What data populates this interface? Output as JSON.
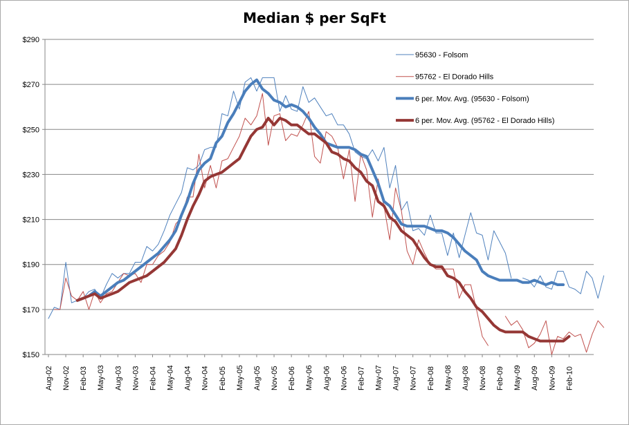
{
  "chart_data": {
    "type": "line",
    "title": "Median $ per SqFt",
    "xlabel": "",
    "ylabel": "",
    "ylim": [
      150,
      290
    ],
    "y_ticks": [
      "$150",
      "$170",
      "$190",
      "$210",
      "$230",
      "$250",
      "$270",
      "$290"
    ],
    "y_tick_values": [
      150,
      170,
      190,
      210,
      230,
      250,
      270,
      290
    ],
    "x_start": "Aug-02",
    "x_tick_labels": [
      "Aug-02",
      "Nov-02",
      "Feb-03",
      "May-03",
      "Aug-03",
      "Nov-03",
      "Feb-04",
      "May-04",
      "Aug-04",
      "Nov-04",
      "Feb-05",
      "May-05",
      "Aug-05",
      "Nov-05",
      "Feb-06",
      "May-06",
      "Aug-06",
      "Nov-06",
      "Feb-07",
      "May-07",
      "Aug-07",
      "Nov-07",
      "Feb-08",
      "May-08",
      "Aug-08",
      "Nov-08",
      "Feb-09",
      "May-09",
      "Aug-09",
      "Nov-09",
      "Feb-10"
    ],
    "grid": true,
    "legend_position": "top-right",
    "series": [
      {
        "name": "95630 - Folsom",
        "color": "#4f81bd",
        "width": 1,
        "values": [
          166,
          171,
          170,
          191,
          173,
          174,
          175,
          178,
          179,
          175,
          181,
          186,
          184,
          186,
          186,
          191,
          191,
          198,
          196,
          199,
          205,
          212,
          217,
          222,
          233,
          232,
          234,
          241,
          242,
          242,
          257,
          256,
          267,
          259,
          271,
          273,
          267,
          273,
          273,
          273,
          258,
          265,
          259,
          258,
          269,
          262,
          264,
          260,
          256,
          257,
          252,
          252,
          248,
          240,
          238,
          237,
          241,
          236,
          242,
          224,
          234,
          214,
          218,
          205,
          206,
          203,
          212,
          204,
          204,
          194,
          204,
          193,
          203,
          213,
          204,
          203,
          192,
          205,
          200,
          195,
          184,
          null,
          184,
          183,
          180,
          185,
          180,
          179,
          187,
          187,
          180,
          179,
          177,
          187,
          184,
          175,
          185
        ]
      },
      {
        "name": "95762 - El Dorado Hills",
        "color": "#c0504d",
        "width": 1,
        "values": [
          null,
          170,
          170,
          184,
          176,
          174,
          178,
          170,
          178,
          173,
          177,
          178,
          182,
          186,
          185,
          186,
          182,
          190,
          190,
          194,
          196,
          200,
          208,
          211,
          220,
          220,
          239,
          224,
          234,
          224,
          236,
          237,
          242,
          247,
          255,
          252,
          256,
          266,
          243,
          256,
          257,
          245,
          248,
          247,
          252,
          258,
          238,
          235,
          249,
          247,
          242,
          228,
          241,
          218,
          239,
          232,
          211,
          228,
          216,
          201,
          224,
          214,
          196,
          190,
          201,
          195,
          190,
          188,
          188,
          188,
          188,
          175,
          181,
          181,
          170,
          158,
          154,
          null,
          null,
          167,
          163,
          165,
          161,
          153,
          155,
          159,
          165,
          150,
          158,
          157,
          160,
          158,
          159,
          151,
          159,
          165,
          162
        ]
      },
      {
        "name": "6 per. Mov. Avg. (95630 - Folsom)",
        "color": "#4a7ebb",
        "width": 4,
        "values": [
          null,
          null,
          null,
          null,
          null,
          174,
          175,
          176,
          178,
          176,
          178,
          180,
          182,
          183,
          185,
          187,
          189,
          191,
          193,
          195,
          198,
          201,
          205,
          212,
          218,
          226,
          232,
          235,
          237,
          244,
          247,
          253,
          257,
          262,
          267,
          270,
          272,
          268,
          266,
          263,
          262,
          260,
          261,
          260,
          258,
          255,
          251,
          248,
          244,
          243,
          242,
          242,
          242,
          241,
          239,
          238,
          232,
          226,
          218,
          216,
          212,
          208,
          207,
          207,
          207,
          207,
          206,
          205,
          205,
          204,
          202,
          199,
          196,
          194,
          192,
          187,
          185,
          184,
          183,
          183,
          183,
          183,
          182,
          182,
          183,
          182,
          181,
          182,
          181,
          181
        ]
      },
      {
        "name": "6 per. Mov. Avg. (95762 - El Dorado Hills)",
        "color": "#953735",
        "width": 4,
        "values": [
          null,
          null,
          null,
          null,
          null,
          174,
          175,
          176,
          177,
          175,
          176,
          177,
          178,
          180,
          182,
          183,
          184,
          185,
          187,
          189,
          191,
          194,
          197,
          203,
          210,
          216,
          221,
          227,
          229,
          230,
          231,
          233,
          235,
          237,
          242,
          247,
          250,
          251,
          255,
          252,
          255,
          254,
          252,
          252,
          250,
          248,
          248,
          246,
          244,
          240,
          239,
          237,
          236,
          233,
          231,
          227,
          225,
          218,
          216,
          211,
          209,
          205,
          203,
          201,
          197,
          193,
          190,
          189,
          189,
          185,
          184,
          182,
          178,
          175,
          171,
          169,
          166,
          163,
          161,
          160,
          160,
          160,
          160,
          158,
          157,
          156,
          156,
          156,
          156,
          156,
          158
        ]
      }
    ]
  }
}
